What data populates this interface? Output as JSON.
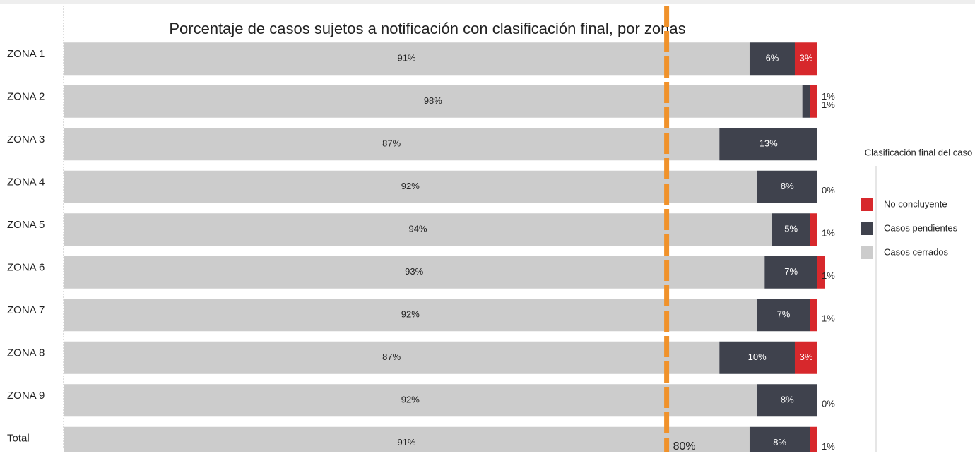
{
  "chart_data": {
    "type": "stacked-barh",
    "title": "Porcentaje de casos sujetos a notificación con clasificación final, por zonas",
    "categories": [
      "ZONA 1",
      "ZONA 2",
      "ZONA 3",
      "ZONA 4",
      "ZONA 5",
      "ZONA 6",
      "ZONA 7",
      "ZONA 8",
      "ZONA 9",
      "Total"
    ],
    "series": [
      {
        "name": "Casos cerrados",
        "color": "#cccccc",
        "values": [
          91,
          98,
          87,
          92,
          94,
          93,
          92,
          87,
          92,
          91
        ],
        "value_labels": [
          "91%",
          "98%",
          "87%",
          "92%",
          "94%",
          "93%",
          "92%",
          "87%",
          "92%",
          "91%"
        ]
      },
      {
        "name": "Casos pendientes",
        "color": "#3f424d",
        "values": [
          6,
          1,
          13,
          8,
          5,
          7,
          7,
          10,
          8,
          8
        ],
        "value_labels": [
          "6%",
          "1%",
          "13%",
          "8%",
          "5%",
          "7%",
          "7%",
          "10%",
          "8%",
          "8%"
        ]
      },
      {
        "name": "No concluyente",
        "color": "#d7282c",
        "values": [
          3,
          1,
          0,
          0,
          1,
          1,
          1,
          3,
          0,
          1
        ],
        "value_labels": [
          "3%",
          "1%",
          null,
          "0%",
          "1%",
          "1%",
          "1%",
          "3%",
          "0%",
          "1%"
        ]
      }
    ],
    "xlim": [
      0,
      100
    ],
    "reference": {
      "value": 80,
      "label": "80%",
      "color": "#f0922b"
    },
    "legend_title": "Clasificación final del caso",
    "legend_position": "right"
  }
}
